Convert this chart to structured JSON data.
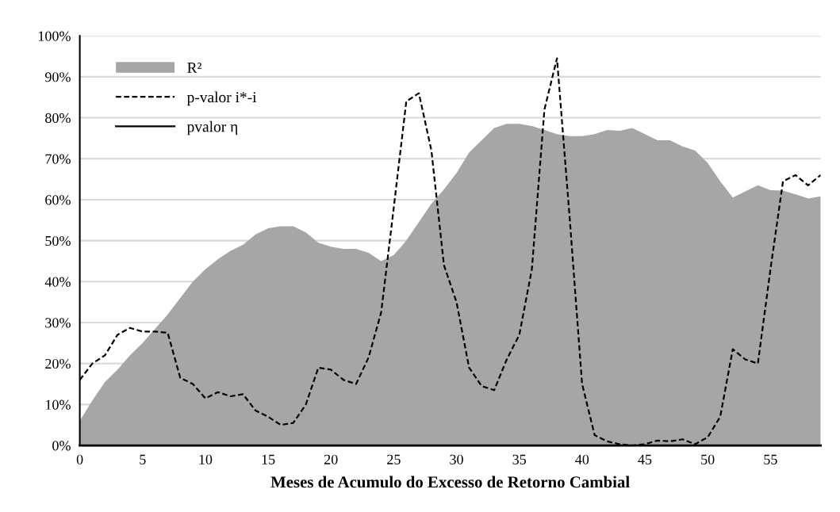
{
  "chart_data": {
    "type": "line",
    "xlabel": "Meses de Acumulo do Excesso de Retorno Cambial",
    "x": [
      0,
      1,
      2,
      3,
      4,
      5,
      6,
      7,
      8,
      9,
      10,
      11,
      12,
      13,
      14,
      15,
      16,
      17,
      18,
      19,
      20,
      21,
      22,
      23,
      24,
      25,
      26,
      27,
      28,
      29,
      30,
      31,
      32,
      33,
      34,
      35,
      36,
      37,
      38,
      39,
      40,
      41,
      42,
      43,
      44,
      45,
      46,
      47,
      48,
      49,
      50,
      51,
      52,
      53,
      54,
      55,
      56,
      57,
      58,
      59
    ],
    "series": [
      {
        "name": "R²",
        "type": "area",
        "color": "#a6a6a6",
        "values": [
          6,
          11,
          15.5,
          18.5,
          22,
          25,
          28.5,
          32,
          36,
          40,
          43,
          45.5,
          47.5,
          49,
          51.5,
          53,
          53.5,
          53.5,
          52,
          49.5,
          48.5,
          48,
          48,
          47,
          45,
          46.5,
          50,
          54.5,
          59,
          62.5,
          66.5,
          71.5,
          74.5,
          77.5,
          78.5,
          78.5,
          78,
          77,
          76,
          75.5,
          75.5,
          76,
          77,
          76.8,
          77.5,
          76,
          74.5,
          74.5,
          73,
          72,
          69,
          64.5,
          60.5,
          62,
          63.5,
          62.3,
          62.2,
          61.3,
          60.3,
          60.8
        ]
      },
      {
        "name": "p-valor i*-i",
        "line_style": "dashed",
        "color": "#000000",
        "values": [
          16,
          20,
          22,
          27,
          28.7,
          27.8,
          27.8,
          27.5,
          16.5,
          15,
          11.5,
          13,
          12,
          12.5,
          8.5,
          7,
          5,
          5.5,
          10,
          19,
          18.5,
          16,
          15,
          21.5,
          32.5,
          58,
          84,
          86,
          72,
          44,
          35,
          19,
          14.5,
          13.5,
          21,
          27,
          43,
          82,
          94.5,
          56,
          15,
          2.5,
          1,
          0.3,
          0,
          0.3,
          1.2,
          1,
          1.5,
          0.3,
          2,
          7,
          23.5,
          21,
          20,
          43,
          64.5,
          66,
          63.5,
          66
        ]
      },
      {
        "name": "pvalor η",
        "line_style": "solid",
        "color": "#000000",
        "values": [
          0,
          0,
          0,
          0,
          0,
          0,
          0,
          0,
          0,
          0,
          0,
          0,
          0,
          0,
          0,
          0,
          0,
          0,
          0,
          0,
          0,
          0,
          0,
          0,
          0,
          0,
          0,
          0,
          0,
          0,
          0,
          0,
          0,
          0,
          0,
          0,
          0,
          0,
          0,
          0,
          0,
          0,
          0,
          0,
          0,
          0,
          0,
          0,
          0,
          0,
          0,
          0,
          0,
          0,
          0,
          0,
          0,
          0,
          0,
          0
        ]
      }
    ],
    "xlim": [
      0,
      59
    ],
    "xticks": [
      0,
      5,
      10,
      15,
      20,
      25,
      30,
      35,
      40,
      45,
      50,
      55
    ],
    "ylim": [
      0,
      100
    ],
    "yticks": [
      {
        "value": 0,
        "label": "0%"
      },
      {
        "value": 10,
        "label": "10%"
      },
      {
        "value": 20,
        "label": "20%"
      },
      {
        "value": 30,
        "label": "30%"
      },
      {
        "value": 40,
        "label": "40%"
      },
      {
        "value": 50,
        "label": "50%"
      },
      {
        "value": 60,
        "label": "60%"
      },
      {
        "value": 70,
        "label": "70%"
      },
      {
        "value": 80,
        "label": "80%"
      },
      {
        "value": 90,
        "label": "90%"
      },
      {
        "value": 100,
        "label": "100%"
      }
    ],
    "grid": "y",
    "legend": "top left"
  }
}
